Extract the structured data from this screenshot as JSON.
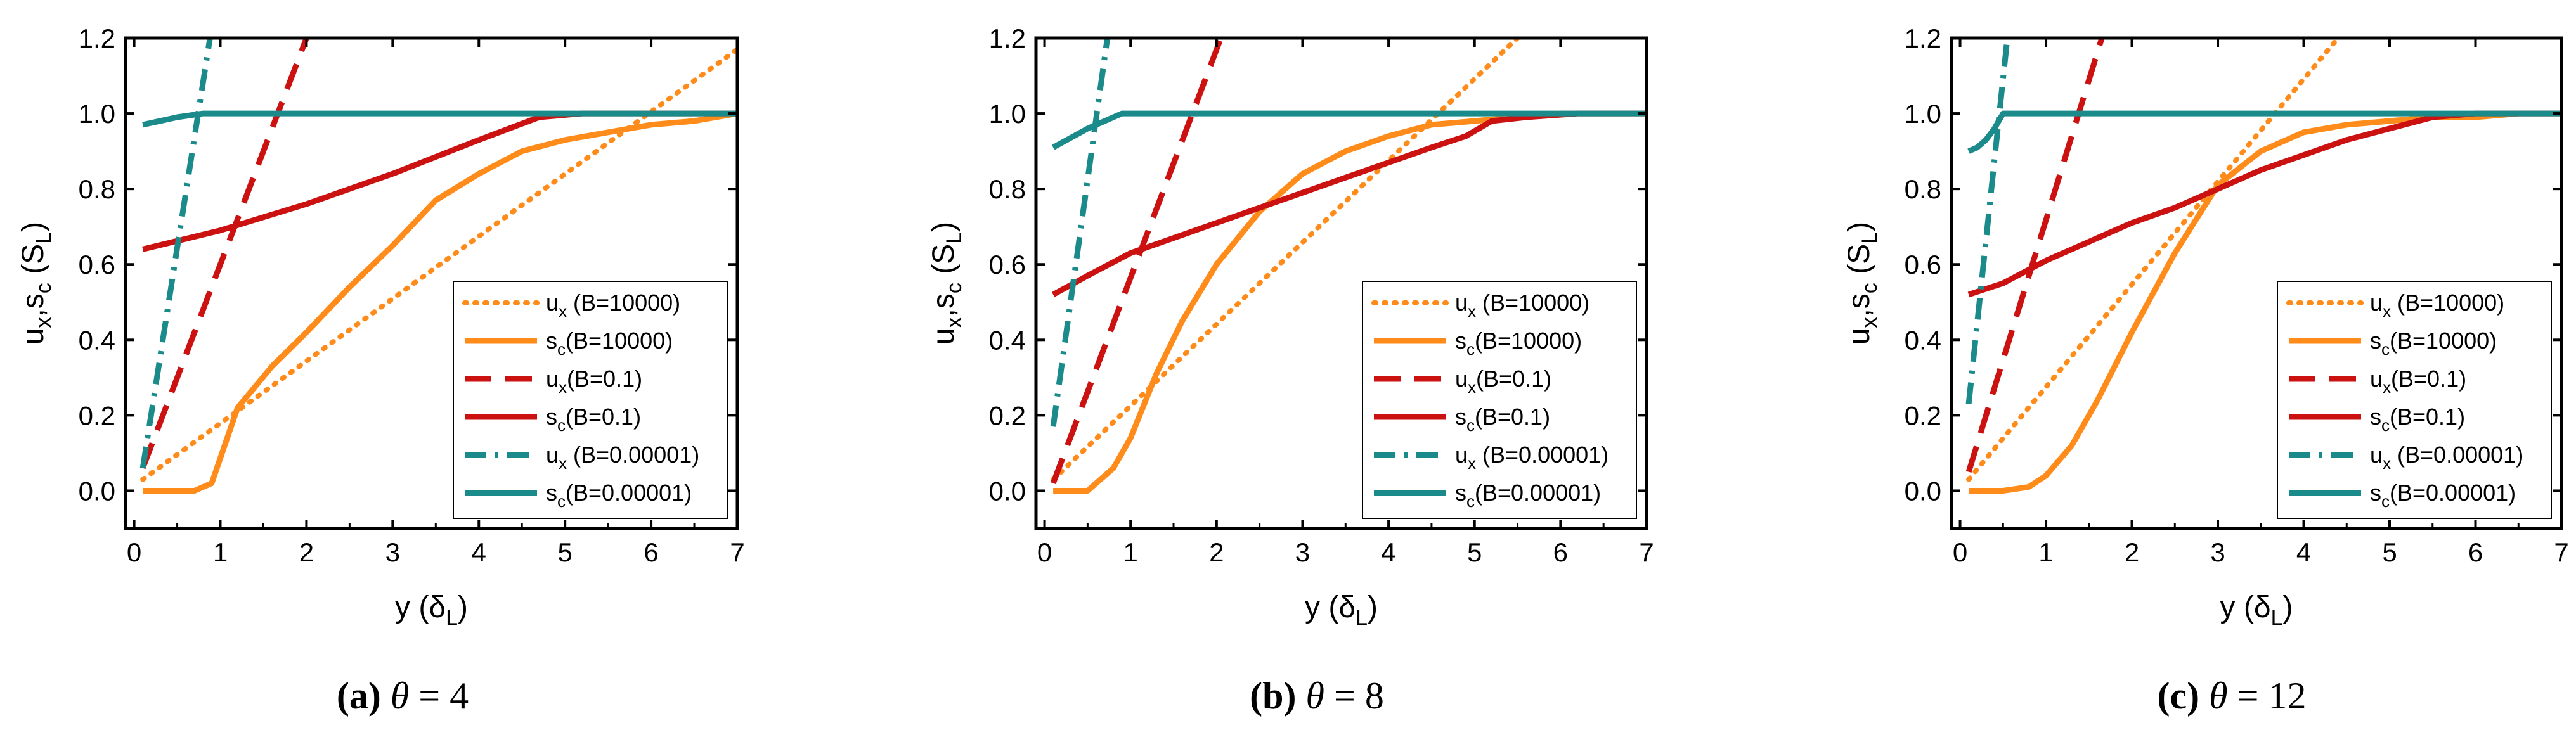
{
  "chart_data": [
    {
      "type": "line",
      "caption": {
        "letter": "(a)",
        "theta": "θ",
        "eq": " = ",
        "value": "4"
      },
      "xlabel": {
        "main": "y (δ",
        "sub": "L",
        "close": ")"
      },
      "ylabel": {
        "u": "u",
        "x": "x",
        "comma": ",s",
        "c": "c",
        "open": " (S",
        "L": "L",
        "close": ")"
      },
      "xlim": [
        -0.1,
        7.0
      ],
      "ylim": [
        -0.1,
        1.2
      ],
      "xticks": [
        0,
        1,
        2,
        3,
        4,
        5,
        6,
        7
      ],
      "xtick_labels": [
        "0",
        "1",
        "2",
        "3",
        "4",
        "5",
        "6",
        "7"
      ],
      "yticks": [
        0.0,
        0.2,
        0.4,
        0.6,
        0.8,
        1.0,
        1.2
      ],
      "ytick_labels": [
        "0.0",
        "0.2",
        "0.4",
        "0.6",
        "0.8",
        "1.0",
        "1.2"
      ],
      "legend_position": "lower-right",
      "series": [
        {
          "name": "u_x (B=10000)",
          "legend": {
            "main": "u",
            "sub": "x",
            "rest": " (B=10000)"
          },
          "color": "#FF8C1A",
          "style": "dotted",
          "x": [
            0.1,
            7.0
          ],
          "y": [
            0.03,
            1.17
          ]
        },
        {
          "name": "s_c(B=10000)",
          "legend": {
            "main": "s",
            "sub": "c",
            "rest": "(B=10000)"
          },
          "color": "#FF8C1A",
          "style": "solid",
          "x": [
            0.1,
            0.7,
            0.9,
            1.2,
            1.6,
            2.0,
            2.5,
            3.0,
            3.5,
            4.0,
            4.5,
            5.0,
            5.5,
            6.0,
            6.5,
            7.0
          ],
          "y": [
            0.0,
            0.0,
            0.02,
            0.22,
            0.33,
            0.42,
            0.54,
            0.65,
            0.77,
            0.84,
            0.9,
            0.93,
            0.95,
            0.97,
            0.98,
            1.0
          ]
        },
        {
          "name": "u_x(B=0.1)",
          "legend": {
            "main": "u",
            "sub": "x",
            "rest": "(B=0.1)"
          },
          "color": "#CC1111",
          "style": "dashed",
          "x": [
            0.1,
            2.0
          ],
          "y": [
            0.06,
            1.2
          ]
        },
        {
          "name": "s_c(B=0.1)",
          "legend": {
            "main": "s",
            "sub": "c",
            "rest": "(B=0.1)"
          },
          "color": "#CC1111",
          "style": "solid",
          "x": [
            0.1,
            1.0,
            2.0,
            3.0,
            4.0,
            4.7,
            5.2,
            7.0
          ],
          "y": [
            0.64,
            0.69,
            0.76,
            0.84,
            0.93,
            0.99,
            1.0,
            1.0
          ]
        },
        {
          "name": "u_x (B=0.00001)",
          "legend": {
            "main": "u",
            "sub": "x",
            "rest": " (B=0.00001)"
          },
          "color": "#1A8A8A",
          "style": "dashdot",
          "x": [
            0.1,
            0.88
          ],
          "y": [
            0.06,
            1.2
          ]
        },
        {
          "name": "s_c(B=0.00001)",
          "legend": {
            "main": "s",
            "sub": "c",
            "rest": "(B=0.00001)"
          },
          "color": "#1A8A8A",
          "style": "solid",
          "x": [
            0.1,
            0.5,
            0.8,
            7.0
          ],
          "y": [
            0.97,
            0.99,
            1.0,
            1.0
          ]
        }
      ]
    },
    {
      "type": "line",
      "caption": {
        "letter": "(b)",
        "theta": "θ",
        "eq": " = ",
        "value": "8"
      },
      "xlabel": {
        "main": "y (δ",
        "sub": "L",
        "close": ")"
      },
      "ylabel": {
        "u": "u",
        "x": "x",
        "comma": ",s",
        "c": "c",
        "open": " (S",
        "L": "L",
        "close": ")"
      },
      "xlim": [
        -0.1,
        7.0
      ],
      "ylim": [
        -0.1,
        1.2
      ],
      "xticks": [
        0,
        1,
        2,
        3,
        4,
        5,
        6,
        7
      ],
      "xtick_labels": [
        "0",
        "1",
        "2",
        "3",
        "4",
        "5",
        "6",
        "7"
      ],
      "yticks": [
        0.0,
        0.2,
        0.4,
        0.6,
        0.8,
        1.0,
        1.2
      ],
      "ytick_labels": [
        "0.0",
        "0.2",
        "0.4",
        "0.6",
        "0.8",
        "1.0",
        "1.2"
      ],
      "legend_position": "lower-right",
      "series": [
        {
          "name": "u_x (B=10000)",
          "legend": {
            "main": "u",
            "sub": "x",
            "rest": " (B=10000)"
          },
          "color": "#FF8C1A",
          "style": "dotted",
          "x": [
            0.1,
            5.5
          ],
          "y": [
            0.03,
            1.2
          ]
        },
        {
          "name": "s_c(B=10000)",
          "legend": {
            "main": "s",
            "sub": "c",
            "rest": "(B=10000)"
          },
          "color": "#FF8C1A",
          "style": "solid",
          "x": [
            0.1,
            0.5,
            0.8,
            1.0,
            1.3,
            1.6,
            2.0,
            2.5,
            3.0,
            3.5,
            4.0,
            4.5,
            5.0,
            5.5,
            6.0,
            7.0
          ],
          "y": [
            0.0,
            0.0,
            0.06,
            0.14,
            0.31,
            0.45,
            0.6,
            0.74,
            0.84,
            0.9,
            0.94,
            0.97,
            0.98,
            0.99,
            1.0,
            1.0
          ]
        },
        {
          "name": "u_x(B=0.1)",
          "legend": {
            "main": "u",
            "sub": "x",
            "rest": "(B=0.1)"
          },
          "color": "#CC1111",
          "style": "dashed",
          "x": [
            0.1,
            2.05
          ],
          "y": [
            0.02,
            1.2
          ]
        },
        {
          "name": "s_c(B=0.1)",
          "legend": {
            "main": "s",
            "sub": "c",
            "rest": "(B=0.1)"
          },
          "color": "#CC1111",
          "style": "solid",
          "x": [
            0.1,
            0.5,
            1.0,
            1.5,
            2.0,
            2.5,
            3.0,
            3.5,
            4.0,
            4.5,
            4.9,
            5.2,
            5.6,
            6.2,
            7.0
          ],
          "y": [
            0.52,
            0.57,
            0.63,
            0.67,
            0.71,
            0.75,
            0.79,
            0.83,
            0.87,
            0.91,
            0.94,
            0.98,
            0.99,
            1.0,
            1.0
          ]
        },
        {
          "name": "u_x (B=0.00001)",
          "legend": {
            "main": "u",
            "sub": "x",
            "rest": " (B=0.00001)"
          },
          "color": "#1A8A8A",
          "style": "dashdot",
          "x": [
            0.1,
            0.73
          ],
          "y": [
            0.17,
            1.2
          ]
        },
        {
          "name": "s_c(B=0.00001)",
          "legend": {
            "main": "s",
            "sub": "c",
            "rest": "(B=0.00001)"
          },
          "color": "#1A8A8A",
          "style": "solid",
          "x": [
            0.1,
            0.5,
            0.9,
            7.0
          ],
          "y": [
            0.91,
            0.96,
            1.0,
            1.0
          ]
        }
      ]
    },
    {
      "type": "line",
      "caption": {
        "letter": "(c)",
        "theta": "θ",
        "eq": " = ",
        "value": "12"
      },
      "xlabel": {
        "main": "y (δ",
        "sub": "L",
        "close": ")"
      },
      "ylabel": {
        "u": "u",
        "x": "x",
        "comma": ",s",
        "c": "c",
        "open": " (S",
        "L": "L",
        "close": ")"
      },
      "xlim": [
        -0.1,
        7.0
      ],
      "ylim": [
        -0.1,
        1.2
      ],
      "xticks": [
        0,
        1,
        2,
        3,
        4,
        5,
        6,
        7
      ],
      "xtick_labels": [
        "0",
        "1",
        "2",
        "3",
        "4",
        "5",
        "6",
        "7"
      ],
      "yticks": [
        0.0,
        0.2,
        0.4,
        0.6,
        0.8,
        1.0,
        1.2
      ],
      "ytick_labels": [
        "0.0",
        "0.2",
        "0.4",
        "0.6",
        "0.8",
        "1.0",
        "1.2"
      ],
      "legend_position": "lower-right",
      "series": [
        {
          "name": "u_x (B=10000)",
          "legend": {
            "main": "u",
            "sub": "x",
            "rest": " (B=10000)"
          },
          "color": "#FF8C1A",
          "style": "dotted",
          "x": [
            0.1,
            4.4
          ],
          "y": [
            0.03,
            1.2
          ]
        },
        {
          "name": "s_c(B=10000)",
          "legend": {
            "main": "s",
            "sub": "c",
            "rest": "(B=10000)"
          },
          "color": "#FF8C1A",
          "style": "solid",
          "x": [
            0.1,
            0.5,
            0.8,
            1.0,
            1.3,
            1.6,
            2.0,
            2.5,
            3.0,
            3.5,
            4.0,
            4.5,
            5.0,
            5.5,
            6.0,
            6.5,
            7.0
          ],
          "y": [
            0.0,
            0.0,
            0.01,
            0.04,
            0.12,
            0.24,
            0.42,
            0.63,
            0.81,
            0.9,
            0.95,
            0.97,
            0.98,
            0.99,
            0.99,
            1.0,
            1.0
          ]
        },
        {
          "name": "u_x(B=0.1)",
          "legend": {
            "main": "u",
            "sub": "x",
            "rest": "(B=0.1)"
          },
          "color": "#CC1111",
          "style": "dashed",
          "x": [
            0.1,
            1.65
          ],
          "y": [
            0.05,
            1.2
          ]
        },
        {
          "name": "s_c(B=0.1)",
          "legend": {
            "main": "s",
            "sub": "c",
            "rest": "(B=0.1)"
          },
          "color": "#CC1111",
          "style": "solid",
          "x": [
            0.1,
            0.5,
            1.0,
            1.5,
            2.0,
            2.5,
            3.0,
            3.5,
            4.0,
            4.5,
            5.0,
            5.5,
            6.0,
            7.0
          ],
          "y": [
            0.52,
            0.55,
            0.61,
            0.66,
            0.71,
            0.75,
            0.8,
            0.85,
            0.89,
            0.93,
            0.96,
            0.99,
            1.0,
            1.0
          ]
        },
        {
          "name": "u_x (B=0.00001)",
          "legend": {
            "main": "u",
            "sub": "x",
            "rest": " (B=0.00001)"
          },
          "color": "#1A8A8A",
          "style": "dashdot",
          "x": [
            0.1,
            0.55
          ],
          "y": [
            0.23,
            1.2
          ]
        },
        {
          "name": "s_c(B=0.00001)",
          "legend": {
            "main": "s",
            "sub": "c",
            "rest": "(B=0.00001)"
          },
          "color": "#1A8A8A",
          "style": "solid",
          "x": [
            0.1,
            0.2,
            0.3,
            0.4,
            0.5,
            7.0
          ],
          "y": [
            0.9,
            0.91,
            0.93,
            0.96,
            1.0,
            1.0
          ]
        }
      ]
    }
  ]
}
